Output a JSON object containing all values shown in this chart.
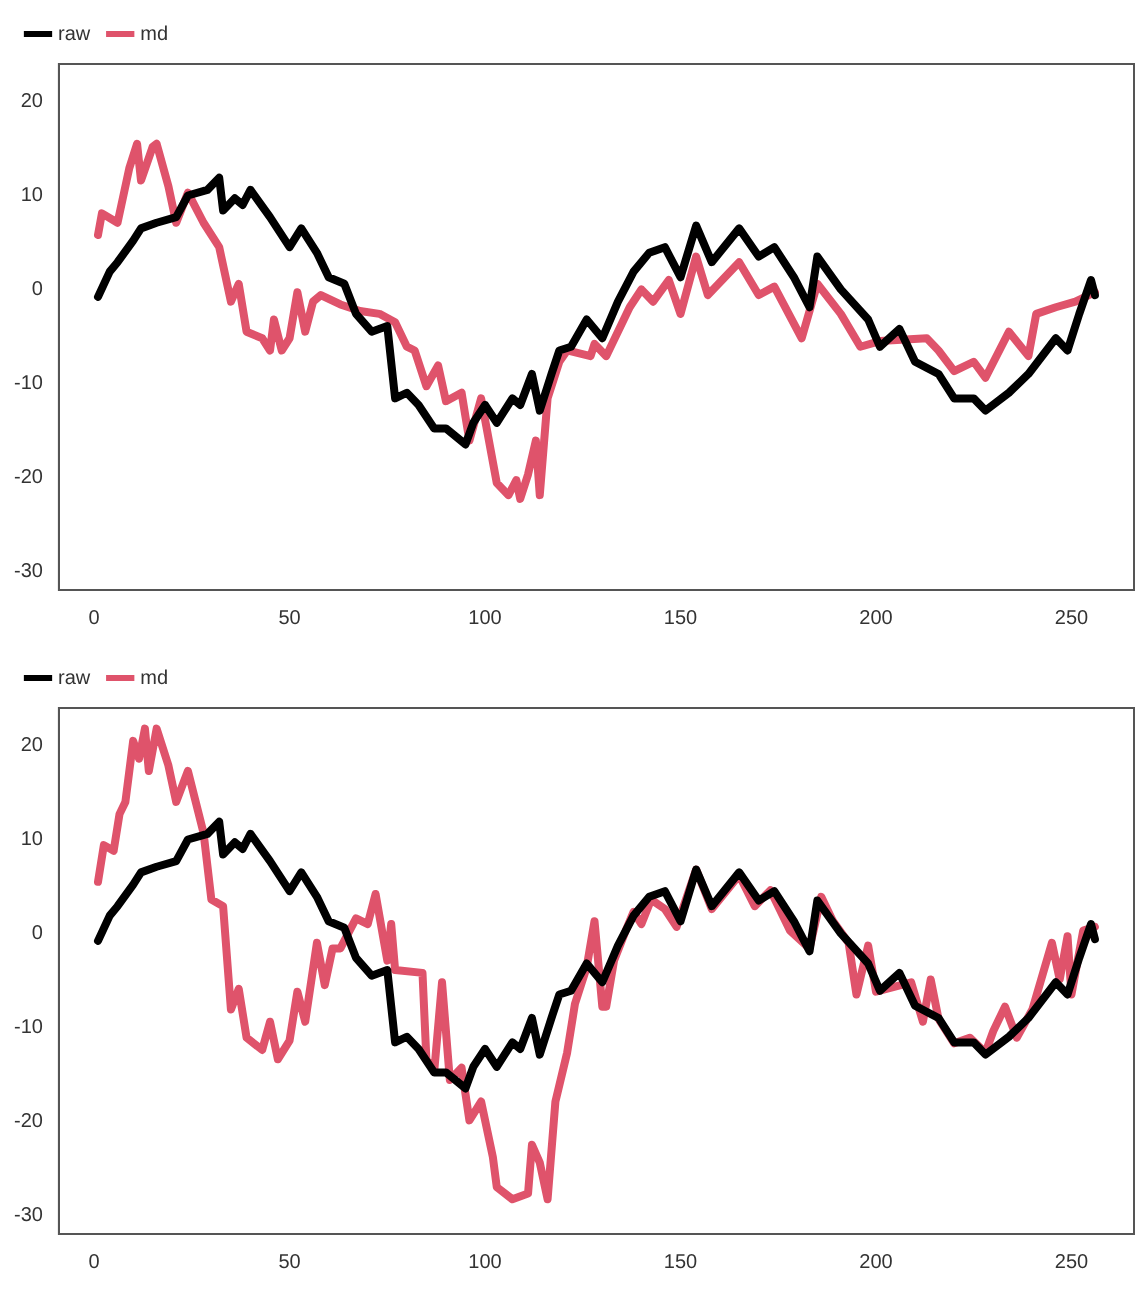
{
  "chart_data": [
    {
      "type": "line",
      "xlim": [
        -9,
        266
      ],
      "ylim": [
        -32,
        24
      ],
      "xticks": [
        0,
        50,
        100,
        150,
        200,
        250
      ],
      "yticks": [
        -30,
        -20,
        -10,
        0,
        10,
        20
      ],
      "grid": false,
      "legend": "top left",
      "marker": "none",
      "line_style": "solid",
      "series": [
        {
          "name": "raw",
          "color": "#000000",
          "x": [
            1,
            4,
            6,
            10,
            12,
            16,
            21,
            24,
            29,
            32,
            33,
            36,
            38,
            40,
            45,
            50,
            53,
            57,
            60,
            64,
            67,
            71,
            75,
            77,
            80,
            83,
            87,
            90,
            95,
            97,
            100,
            103,
            107,
            109,
            112,
            114,
            117,
            119,
            122,
            126,
            130,
            134,
            138,
            142,
            146,
            150,
            154,
            158,
            165,
            170,
            174,
            179,
            183,
            185,
            191,
            198,
            201,
            206,
            210,
            216,
            220,
            225,
            228,
            234,
            239,
            246,
            249,
            252,
            255,
            256
          ],
          "values": [
            -0.8,
            1.9,
            2.9,
            5.2,
            6.5,
            7.1,
            7.7,
            10,
            10.6,
            11.9,
            8.4,
            9.7,
            9,
            10.6,
            7.7,
            4.5,
            6.5,
            3.9,
            1.3,
            0.6,
            -2.6,
            -4.5,
            -3.9,
            -11.6,
            -11,
            -12.3,
            -14.8,
            -14.8,
            -16.5,
            -14.2,
            -12.3,
            -14.2,
            -11.6,
            -12.3,
            -9,
            -12.9,
            -9,
            -6.5,
            -6.1,
            -3.2,
            -5.2,
            -1.3,
            1.9,
            3.9,
            4.5,
            1.3,
            6.8,
            2.9,
            6.5,
            3.5,
            4.5,
            1.3,
            -1.9,
            3.5,
            0,
            -3.2,
            -6.1,
            -4.2,
            -7.7,
            -9,
            -11.6,
            -11.6,
            -12.9,
            -11,
            -9,
            -5.2,
            -6.5,
            -2.6,
            1,
            -0.6
          ]
        },
        {
          "name": "md",
          "color": "#df536b",
          "x": [
            1,
            2,
            6,
            9,
            11,
            12,
            15,
            16,
            19,
            21,
            24,
            28,
            32,
            35,
            37,
            39,
            43,
            45,
            46,
            48,
            50,
            52,
            54,
            56,
            58,
            63,
            68,
            73,
            77,
            80,
            82,
            85,
            88,
            90,
            94,
            96,
            99,
            103,
            106,
            108,
            109,
            111,
            113,
            114,
            116,
            119,
            121,
            127,
            128,
            131,
            137,
            140,
            143,
            147,
            150,
            154,
            157,
            165,
            170,
            174,
            181,
            185,
            191,
            196,
            201,
            213,
            216,
            220,
            225,
            228,
            234,
            239,
            241,
            246,
            251,
            256
          ],
          "values": [
            5.8,
            8.1,
            7.1,
            12.9,
            15.5,
            11.6,
            15.2,
            15.5,
            11,
            7.1,
            10.3,
            7.1,
            4.5,
            -1.3,
            0.6,
            -4.5,
            -5.2,
            -6.5,
            -3.2,
            -6.5,
            -5.2,
            -0.3,
            -4.5,
            -1.3,
            -0.6,
            -1.6,
            -2.3,
            -2.6,
            -3.5,
            -6.1,
            -6.5,
            -10.3,
            -8.1,
            -11.9,
            -11,
            -16.1,
            -11.6,
            -20.6,
            -21.9,
            -20.3,
            -22.3,
            -19.7,
            -16.1,
            -21.9,
            -11.6,
            -7.7,
            -6.5,
            -7.1,
            -5.8,
            -7.1,
            -1.9,
            0,
            -1.3,
            1,
            -2.6,
            3.5,
            -0.6,
            2.9,
            -0.6,
            0.3,
            -5.2,
            0.6,
            -2.6,
            -6.1,
            -5.5,
            -5.2,
            -6.5,
            -8.7,
            -7.7,
            -9.4,
            -4.5,
            -7.1,
            -2.6,
            -1.9,
            -1.3,
            -0.3
          ]
        }
      ]
    },
    {
      "type": "line",
      "xlim": [
        -9,
        266
      ],
      "ylim": [
        -32,
        24
      ],
      "xticks": [
        0,
        50,
        100,
        150,
        200,
        250
      ],
      "yticks": [
        -30,
        -20,
        -10,
        0,
        10,
        20
      ],
      "grid": false,
      "legend": "top left",
      "marker": "none",
      "line_style": "solid",
      "series": [
        {
          "name": "raw",
          "color": "#000000",
          "x": [
            1,
            4,
            6,
            10,
            12,
            16,
            21,
            24,
            29,
            32,
            33,
            36,
            38,
            40,
            45,
            50,
            53,
            57,
            60,
            64,
            67,
            71,
            75,
            77,
            80,
            83,
            87,
            90,
            95,
            97,
            100,
            103,
            107,
            109,
            112,
            114,
            117,
            119,
            122,
            126,
            130,
            134,
            138,
            142,
            146,
            150,
            154,
            158,
            165,
            170,
            174,
            179,
            183,
            185,
            191,
            198,
            201,
            206,
            210,
            216,
            220,
            225,
            228,
            234,
            239,
            246,
            249,
            252,
            255,
            256
          ],
          "values": [
            -0.8,
            1.9,
            2.9,
            5.2,
            6.5,
            7.1,
            7.7,
            10,
            10.6,
            11.9,
            8.4,
            9.7,
            9,
            10.6,
            7.7,
            4.5,
            6.5,
            3.9,
            1.3,
            0.6,
            -2.6,
            -4.5,
            -3.9,
            -11.6,
            -11,
            -12.3,
            -14.8,
            -14.8,
            -16.5,
            -14.2,
            -12.3,
            -14.2,
            -11.6,
            -12.3,
            -9,
            -12.9,
            -9,
            -6.5,
            -6.1,
            -3.2,
            -5.2,
            -1.3,
            1.9,
            3.9,
            4.5,
            1.3,
            6.8,
            2.9,
            6.5,
            3.5,
            4.5,
            1.3,
            -1.9,
            3.5,
            0,
            -3.2,
            -6.1,
            -4.2,
            -7.7,
            -9,
            -11.6,
            -11.6,
            -12.9,
            -11,
            -9,
            -5.2,
            -6.5,
            -2.6,
            1,
            -0.6
          ]
        },
        {
          "name": "md",
          "color": "#df536b",
          "x": [
            1,
            2.5,
            5,
            6.5,
            8,
            10,
            11.5,
            13,
            14,
            16,
            19,
            21,
            24,
            26,
            28,
            30,
            33,
            35,
            37,
            39,
            43,
            45,
            47,
            50,
            52,
            54,
            57,
            59,
            61,
            63,
            67,
            70,
            72,
            75,
            76,
            77,
            84,
            85,
            87,
            89,
            91,
            94,
            96,
            99,
            102,
            103,
            107,
            111,
            112,
            114,
            116,
            118,
            121,
            123,
            126,
            128,
            130,
            131,
            133,
            136,
            138,
            140,
            142.5,
            146,
            149,
            154,
            158,
            165,
            169,
            173,
            178,
            183,
            186,
            189,
            193,
            195,
            198,
            200,
            209,
            212,
            214,
            216,
            220,
            224,
            228,
            230,
            233,
            236,
            240,
            245,
            247,
            249,
            250,
            253,
            256
          ],
          "values": [
            5.5,
            9.4,
            8.8,
            12.7,
            14,
            20.5,
            18.6,
            21.8,
            17.3,
            21.8,
            17.9,
            14,
            17.3,
            14,
            10.7,
            3.6,
            2.9,
            -8.1,
            -5.9,
            -11.1,
            -12.4,
            -9.4,
            -13.4,
            -11.4,
            -6.2,
            -9.4,
            -1,
            -5.5,
            -1.6,
            -1.6,
            1.6,
            1,
            4.2,
            -2.9,
            1,
            -3.9,
            -4.2,
            -13.4,
            -14.7,
            -5.2,
            -15.6,
            -14.3,
            -19.9,
            -17.9,
            -23.8,
            -27,
            -28.3,
            -27.7,
            -22.5,
            -24.4,
            -28.3,
            -17.9,
            -12.7,
            -7.5,
            -3.6,
            1.3,
            -7.8,
            -7.8,
            -2.9,
            0.3,
            2.3,
            1,
            3.6,
            2.6,
            0.7,
            6.8,
            2.6,
            6.2,
            2.9,
            4.6,
            0.3,
            -1.6,
            3.9,
            1.3,
            -1,
            -6.5,
            -1.3,
            -6.2,
            -5.2,
            -9.4,
            -4.9,
            -9.1,
            -11.7,
            -11.1,
            -12.7,
            -10.4,
            -7.8,
            -11.1,
            -8.1,
            -1,
            -4.9,
            -0.3,
            -6.5,
            0.3,
            0.7
          ]
        }
      ]
    }
  ]
}
